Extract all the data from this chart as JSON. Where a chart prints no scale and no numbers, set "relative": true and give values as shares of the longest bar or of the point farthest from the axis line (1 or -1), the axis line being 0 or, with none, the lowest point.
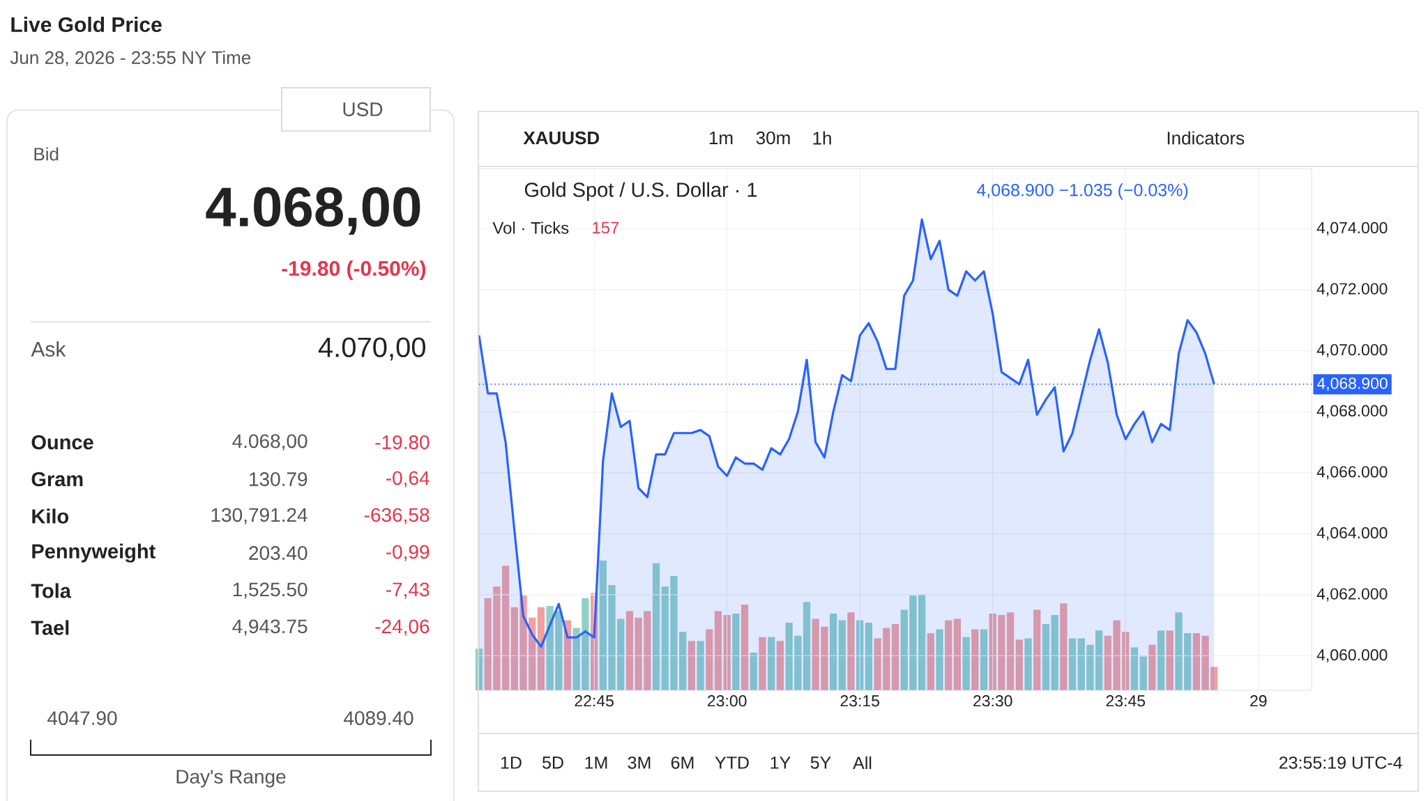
{
  "chart_data": [
    {
      "type": "other",
      "title": "Live Gold Price",
      "subtitle": "Jun 28, 2026 - 23:55 NY Time",
      "annotations": [
        "USD",
        "Bid",
        "4.068,00",
        "-19.80 (-0.50%)",
        "Ask",
        "4.070,00",
        "Ounce",
        "Gram",
        "Kilo",
        "Pennyweight",
        "Tola",
        "Tael",
        "4.068,00",
        "130.79",
        "130,791.24",
        "203.40",
        "1,525.50",
        "4,943.75",
        "-19.80",
        "-0,64",
        "-636,58",
        "-0,99",
        "-7,43",
        "-24,06",
        "4047.90",
        "4089.40",
        "Day's Range"
      ]
    },
    {
      "type": "area",
      "title": "Gold Spot / U.S. Dollar · 1",
      "color": "#2962ff",
      "grid": true,
      "x": [
        "2026-06-28T22:32",
        "2026-06-28T22:33",
        "2026-06-28T22:34",
        "2026-06-28T22:35",
        "2026-06-28T22:36",
        "2026-06-28T22:37",
        "2026-06-28T22:38",
        "2026-06-28T22:39",
        "2026-06-28T22:40",
        "2026-06-28T22:41",
        "2026-06-28T22:42",
        "2026-06-28T22:43",
        "2026-06-28T22:44",
        "2026-06-28T22:45",
        "2026-06-28T22:46",
        "2026-06-28T22:47",
        "2026-06-28T22:48",
        "2026-06-28T22:49",
        "2026-06-28T22:50",
        "2026-06-28T22:51",
        "2026-06-28T22:52",
        "2026-06-28T22:53",
        "2026-06-28T22:54",
        "2026-06-28T22:55",
        "2026-06-28T22:56",
        "2026-06-28T22:57",
        "2026-06-28T22:58",
        "2026-06-28T22:59",
        "2026-06-28T23:00",
        "2026-06-28T23:01",
        "2026-06-28T23:02",
        "2026-06-28T23:03",
        "2026-06-28T23:04",
        "2026-06-28T23:05",
        "2026-06-28T23:06",
        "2026-06-28T23:07",
        "2026-06-28T23:08",
        "2026-06-28T23:09",
        "2026-06-28T23:10",
        "2026-06-28T23:11",
        "2026-06-28T23:12",
        "2026-06-28T23:13",
        "2026-06-28T23:14",
        "2026-06-28T23:15",
        "2026-06-28T23:16",
        "2026-06-28T23:17",
        "2026-06-28T23:18",
        "2026-06-28T23:19",
        "2026-06-28T23:20",
        "2026-06-28T23:21",
        "2026-06-28T23:22",
        "2026-06-28T23:23",
        "2026-06-28T23:24",
        "2026-06-28T23:25",
        "2026-06-28T23:26",
        "2026-06-28T23:27",
        "2026-06-28T23:28",
        "2026-06-28T23:29",
        "2026-06-28T23:30",
        "2026-06-28T23:31",
        "2026-06-28T23:32",
        "2026-06-28T23:33",
        "2026-06-28T23:34",
        "2026-06-28T23:35",
        "2026-06-28T23:36",
        "2026-06-28T23:37",
        "2026-06-28T23:38",
        "2026-06-28T23:39",
        "2026-06-28T23:40",
        "2026-06-28T23:41",
        "2026-06-28T23:42",
        "2026-06-28T23:43",
        "2026-06-28T23:44",
        "2026-06-28T23:45",
        "2026-06-28T23:46",
        "2026-06-28T23:47",
        "2026-06-28T23:48",
        "2026-06-28T23:49",
        "2026-06-28T23:50",
        "2026-06-28T23:51",
        "2026-06-28T23:52",
        "2026-06-28T23:53",
        "2026-06-28T23:54",
        "2026-06-28T23:55"
      ],
      "values": [
        4070.5,
        4068.6,
        4068.6,
        4067.0,
        4064.1,
        4061.3,
        4060.7,
        4060.3,
        4061.0,
        4061.7,
        4060.6,
        4060.6,
        4060.8,
        4060.6,
        4066.4,
        4068.6,
        4067.5,
        4067.7,
        4065.5,
        4065.2,
        4066.6,
        4066.6,
        4067.3,
        4067.3,
        4067.3,
        4067.4,
        4067.2,
        4066.2,
        4065.9,
        4066.5,
        4066.3,
        4066.3,
        4066.1,
        4066.8,
        4066.6,
        4067.1,
        4068.0,
        4069.7,
        4067.0,
        4066.5,
        4068.0,
        4069.2,
        4069.0,
        4070.5,
        4070.9,
        4070.3,
        4069.4,
        4069.4,
        4071.8,
        4072.3,
        4074.3,
        4073.0,
        4073.6,
        4072.0,
        4071.8,
        4072.6,
        4072.3,
        4072.6,
        4071.2,
        4069.3,
        4069.1,
        4068.9,
        4069.7,
        4067.9,
        4068.4,
        4068.8,
        4066.7,
        4067.3,
        4068.5,
        4069.7,
        4070.7,
        4069.6,
        4067.9,
        4067.1,
        4067.6,
        4068.0,
        4067.0,
        4067.6,
        4067.4,
        4069.9,
        4071.0,
        4070.6,
        4069.9,
        4068.9
      ],
      "xlim": [
        "2026-06-28T22:32",
        "2026-06-29T00:06"
      ],
      "ylim": [
        4058.87,
        4075.97
      ],
      "xticks": [
        {
          "value": "2026-06-28T22:45",
          "label": "22:45"
        },
        {
          "value": "2026-06-28T23:00",
          "label": "23:00"
        },
        {
          "value": "2026-06-28T23:15",
          "label": "23:15"
        },
        {
          "value": "2026-06-28T23:30",
          "label": "23:30"
        },
        {
          "value": "2026-06-28T23:45",
          "label": "23:45"
        },
        {
          "value": "2026-06-29T00:00",
          "label": "29"
        }
      ],
      "yticks": [
        {
          "value": 4060,
          "label": "4,060.000"
        },
        {
          "value": 4062,
          "label": "4,062.000"
        },
        {
          "value": 4064,
          "label": "4,064.000"
        },
        {
          "value": 4066,
          "label": "4,066.000"
        },
        {
          "value": 4068,
          "label": "4,068.000"
        },
        {
          "value": 4070,
          "label": "4,070.000"
        },
        {
          "value": 4072,
          "label": "4,072.000"
        },
        {
          "value": 4074,
          "label": "4,074.000"
        }
      ],
      "ref_lines": [
        {
          "axis": "y",
          "value": 4068.9,
          "label": "4,068.900",
          "color": "#2962ff",
          "line_style": "dotted"
        }
      ],
      "annotations": [
        "XAUUSD",
        "1m",
        "30m",
        "1h",
        "Indicators",
        "4,068.900 −1.035 (−0.03%)",
        "Vol · Ticks",
        "157",
        "1D",
        "5D",
        "1M",
        "3M",
        "6M",
        "YTD",
        "1Y",
        "5Y",
        "All",
        "23:55:19 UTC-4"
      ]
    },
    {
      "type": "bar",
      "relative": true,
      "xlim": [
        "2026-06-28T22:32",
        "2026-06-29T00:06"
      ],
      "x": [
        "2026-06-28T22:32",
        "2026-06-28T22:33",
        "2026-06-28T22:34",
        "2026-06-28T22:35",
        "2026-06-28T22:36",
        "2026-06-28T22:37",
        "2026-06-28T22:38",
        "2026-06-28T22:39",
        "2026-06-28T22:40",
        "2026-06-28T22:41",
        "2026-06-28T22:42",
        "2026-06-28T22:43",
        "2026-06-28T22:44",
        "2026-06-28T22:45",
        "2026-06-28T22:46",
        "2026-06-28T22:47",
        "2026-06-28T22:48",
        "2026-06-28T22:49",
        "2026-06-28T22:50",
        "2026-06-28T22:51",
        "2026-06-28T22:52",
        "2026-06-28T22:53",
        "2026-06-28T22:54",
        "2026-06-28T22:55",
        "2026-06-28T22:56",
        "2026-06-28T22:57",
        "2026-06-28T22:58",
        "2026-06-28T22:59",
        "2026-06-28T23:00",
        "2026-06-28T23:01",
        "2026-06-28T23:02",
        "2026-06-28T23:03",
        "2026-06-28T23:04",
        "2026-06-28T23:05",
        "2026-06-28T23:06",
        "2026-06-28T23:07",
        "2026-06-28T23:08",
        "2026-06-28T23:09",
        "2026-06-28T23:10",
        "2026-06-28T23:11",
        "2026-06-28T23:12",
        "2026-06-28T23:13",
        "2026-06-28T23:14",
        "2026-06-28T23:15",
        "2026-06-28T23:16",
        "2026-06-28T23:17",
        "2026-06-28T23:18",
        "2026-06-28T23:19",
        "2026-06-28T23:20",
        "2026-06-28T23:21",
        "2026-06-28T23:22",
        "2026-06-28T23:23",
        "2026-06-28T23:24",
        "2026-06-28T23:25",
        "2026-06-28T23:26",
        "2026-06-28T23:27",
        "2026-06-28T23:28",
        "2026-06-28T23:29",
        "2026-06-28T23:30",
        "2026-06-28T23:31",
        "2026-06-28T23:32",
        "2026-06-28T23:33",
        "2026-06-28T23:34",
        "2026-06-28T23:35",
        "2026-06-28T23:36",
        "2026-06-28T23:37",
        "2026-06-28T23:38",
        "2026-06-28T23:39",
        "2026-06-28T23:40",
        "2026-06-28T23:41",
        "2026-06-28T23:42",
        "2026-06-28T23:43",
        "2026-06-28T23:44",
        "2026-06-28T23:45",
        "2026-06-28T23:46",
        "2026-06-28T23:47",
        "2026-06-28T23:48",
        "2026-06-28T23:49",
        "2026-06-28T23:50",
        "2026-06-28T23:51",
        "2026-06-28T23:52",
        "2026-06-28T23:53",
        "2026-06-28T23:54",
        "2026-06-28T23:55"
      ],
      "values": [
        0.32,
        0.71,
        0.8,
        0.96,
        0.64,
        0.73,
        0.56,
        0.64,
        0.65,
        0.61,
        0.54,
        0.48,
        0.71,
        0.75,
        1,
        0.81,
        0.55,
        0.61,
        0.56,
        0.61,
        0.98,
        0.8,
        0.88,
        0.45,
        0.38,
        0.38,
        0.47,
        0.61,
        0.58,
        0.59,
        0.66,
        0.29,
        0.41,
        0.41,
        0.38,
        0.52,
        0.42,
        0.68,
        0.55,
        0.49,
        0.59,
        0.54,
        0.6,
        0.54,
        0.52,
        0.4,
        0.48,
        0.51,
        0.62,
        0.73,
        0.74,
        0.44,
        0.47,
        0.54,
        0.55,
        0.41,
        0.47,
        0.47,
        0.59,
        0.58,
        0.6,
        0.39,
        0.4,
        0.62,
        0.51,
        0.58,
        0.67,
        0.4,
        0.4,
        0.35,
        0.46,
        0.42,
        0.54,
        0.45,
        0.33,
        0.26,
        0.35,
        0.46,
        0.46,
        0.6,
        0.44,
        0.44,
        0.42,
        0.18
      ],
      "colors": [
        "#8fd0c8",
        "#f2a19f",
        "#f2a19f",
        "#f2a19f",
        "#f2a19f",
        "#f2a19f",
        "#f2a19f",
        "#f2a19f",
        "#8fd0c8",
        "#8fd0c8",
        "#f2a19f",
        "#8fd0c8",
        "#8fd0c8",
        "#f2a19f",
        "#8fd0c8",
        "#8fd0c8",
        "#8fd0c8",
        "#f2a19f",
        "#f2a19f",
        "#f2a19f",
        "#8fd0c8",
        "#8fd0c8",
        "#8fd0c8",
        "#8fd0c8",
        "#f2a19f",
        "#8fd0c8",
        "#f2a19f",
        "#f2a19f",
        "#f2a19f",
        "#8fd0c8",
        "#f2a19f",
        "#8fd0c8",
        "#f2a19f",
        "#8fd0c8",
        "#f2a19f",
        "#8fd0c8",
        "#8fd0c8",
        "#8fd0c8",
        "#f2a19f",
        "#f2a19f",
        "#8fd0c8",
        "#8fd0c8",
        "#f2a19f",
        "#8fd0c8",
        "#8fd0c8",
        "#f2a19f",
        "#f2a19f",
        "#f2a19f",
        "#8fd0c8",
        "#8fd0c8",
        "#8fd0c8",
        "#f2a19f",
        "#8fd0c8",
        "#f2a19f",
        "#f2a19f",
        "#8fd0c8",
        "#f2a19f",
        "#8fd0c8",
        "#f2a19f",
        "#f2a19f",
        "#f2a19f",
        "#f2a19f",
        "#8fd0c8",
        "#f2a19f",
        "#8fd0c8",
        "#8fd0c8",
        "#f2a19f",
        "#8fd0c8",
        "#8fd0c8",
        "#8fd0c8",
        "#8fd0c8",
        "#f2a19f",
        "#f2a19f",
        "#f2a19f",
        "#8fd0c8",
        "#8fd0c8",
        "#f2a19f",
        "#8fd0c8",
        "#f2a19f",
        "#8fd0c8",
        "#8fd0c8",
        "#f2a19f",
        "#f2a19f",
        "#f2a19f"
      ]
    }
  ]
}
